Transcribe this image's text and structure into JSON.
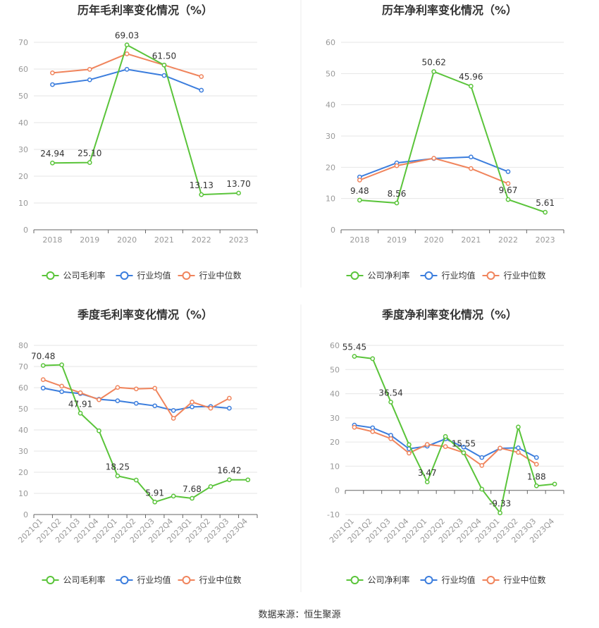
{
  "source": "数据来源：恒生聚源",
  "colors": {
    "company": "#5ac43a",
    "avg": "#3b7ddd",
    "median": "#f0845c"
  },
  "charts": [
    {
      "type": "line",
      "title": "历年毛利率变化情况（%）",
      "categories": [
        "2018",
        "2019",
        "2020",
        "2021",
        "2022",
        "2023"
      ],
      "ylim": [
        0,
        70
      ],
      "yticks": [
        0,
        10,
        20,
        30,
        40,
        50,
        60,
        70
      ],
      "rotate_labels": false,
      "series": [
        {
          "name": "公司毛利率",
          "key": "company",
          "values": [
            24.94,
            25.1,
            69.03,
            61.5,
            13.13,
            13.7
          ],
          "labels": [
            "24.94",
            "25.10",
            "69.03",
            "61.50",
            "13.13",
            "13.70"
          ]
        },
        {
          "name": "行业均值",
          "key": "avg",
          "values": [
            54.2,
            56.0,
            59.9,
            57.6,
            52.1,
            null
          ]
        },
        {
          "name": "行业中位数",
          "key": "median",
          "values": [
            58.6,
            59.9,
            65.7,
            61.5,
            57.2,
            null
          ]
        }
      ]
    },
    {
      "type": "line",
      "title": "历年净利率变化情况（%）",
      "categories": [
        "2018",
        "2019",
        "2020",
        "2021",
        "2022",
        "2023"
      ],
      "ylim": [
        0,
        60
      ],
      "yticks": [
        0,
        10,
        20,
        30,
        40,
        50,
        60
      ],
      "rotate_labels": false,
      "series": [
        {
          "name": "公司净利率",
          "key": "company",
          "values": [
            9.48,
            8.56,
            50.62,
            45.96,
            9.67,
            5.61
          ],
          "labels": [
            "9.48",
            "8.56",
            "50.62",
            "45.96",
            "9.67",
            "5.61"
          ]
        },
        {
          "name": "行业均值",
          "key": "avg",
          "values": [
            16.9,
            21.4,
            22.8,
            23.3,
            18.6,
            null
          ]
        },
        {
          "name": "行业中位数",
          "key": "median",
          "values": [
            15.9,
            20.5,
            22.9,
            19.6,
            14.8,
            null
          ]
        }
      ]
    },
    {
      "type": "line",
      "title": "季度毛利率变化情况（%）",
      "categories": [
        "2021Q1",
        "2021Q2",
        "2021Q3",
        "2021Q4",
        "2022Q1",
        "2022Q2",
        "2022Q3",
        "2022Q4",
        "2023Q1",
        "2023Q2",
        "2023Q3",
        "2023Q4"
      ],
      "ylim": [
        0,
        80
      ],
      "yticks": [
        0,
        10,
        20,
        30,
        40,
        50,
        60,
        70,
        80
      ],
      "rotate_labels": true,
      "series": [
        {
          "name": "公司毛利率",
          "key": "company",
          "values": [
            70.48,
            70.8,
            47.91,
            39.6,
            18.25,
            16.3,
            5.91,
            8.7,
            7.68,
            13.2,
            16.42,
            16.4
          ],
          "labels": [
            "70.48",
            "",
            "47.91",
            "",
            "18.25",
            "",
            "5.91",
            "",
            "7.68",
            "",
            "16.42",
            ""
          ]
        },
        {
          "name": "行业均值",
          "key": "avg",
          "values": [
            59.8,
            58.1,
            57.2,
            54.5,
            53.8,
            52.6,
            51.4,
            49.2,
            50.9,
            51.1,
            50.3,
            null
          ]
        },
        {
          "name": "行业中位数",
          "key": "median",
          "values": [
            63.8,
            60.7,
            57.6,
            54.3,
            60.1,
            59.4,
            59.7,
            45.5,
            53.2,
            50.3,
            55.0,
            null
          ]
        }
      ]
    },
    {
      "type": "line",
      "title": "季度净利率变化情况（%）",
      "categories": [
        "2021Q1",
        "2021Q2",
        "2021Q3",
        "2021Q4",
        "2022Q1",
        "2022Q2",
        "2022Q3",
        "2022Q4",
        "2023Q1",
        "2023Q2",
        "2023Q3",
        "2023Q4"
      ],
      "ylim": [
        -10,
        60
      ],
      "yticks": [
        -10,
        0,
        10,
        20,
        30,
        40,
        50,
        60
      ],
      "rotate_labels": true,
      "series": [
        {
          "name": "公司净利率",
          "key": "company",
          "values": [
            55.45,
            54.5,
            36.54,
            18.9,
            3.47,
            22.3,
            15.55,
            0.5,
            -9.33,
            26.2,
            1.88,
            2.6
          ],
          "labels": [
            "55.45",
            "",
            "36.54",
            "",
            "3.47",
            "",
            "15.55",
            "",
            "-9.33",
            "",
            "1.88",
            ""
          ]
        },
        {
          "name": "行业均值",
          "key": "avg",
          "values": [
            27.0,
            25.9,
            22.8,
            17.2,
            18.3,
            21.3,
            17.9,
            13.6,
            17.4,
            17.6,
            13.6,
            null
          ]
        },
        {
          "name": "行业中位数",
          "key": "median",
          "values": [
            26.1,
            24.3,
            21.4,
            15.4,
            19.0,
            18.1,
            15.6,
            10.3,
            17.5,
            15.7,
            10.8,
            null
          ]
        }
      ]
    }
  ]
}
